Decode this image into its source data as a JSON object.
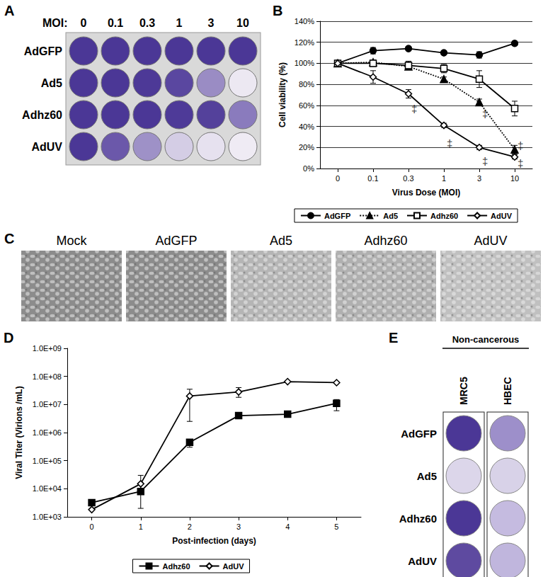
{
  "chart_data": [
    {
      "type": "line",
      "title": "B",
      "categories": [
        "0",
        "0.1",
        "0.3",
        "1",
        "3",
        "10"
      ],
      "x_label": "Virus Dose (MOI)",
      "y_label": "Cell viability (%)",
      "ylim": [
        0,
        140
      ],
      "yticks": [
        {
          "value": 0,
          "label": "0%"
        },
        {
          "value": 20,
          "label": "20%"
        },
        {
          "value": 40,
          "label": "40%"
        },
        {
          "value": 60,
          "label": "60%"
        },
        {
          "value": 80,
          "label": "80%"
        },
        {
          "value": 100,
          "label": "100%"
        },
        {
          "value": 120,
          "label": "120%"
        },
        {
          "value": 140,
          "label": "140%"
        }
      ],
      "grid": true,
      "legend": "bottom",
      "series": [
        {
          "name": "AdGFP",
          "color": "#000000",
          "marker": "circle",
          "line_style": "solid",
          "values": [
            100,
            112,
            114,
            110,
            108,
            119
          ],
          "errors": [
            0,
            3,
            2,
            2,
            3,
            2
          ]
        },
        {
          "name": "Ad5",
          "color": "#000000",
          "marker": "triangle",
          "line_style": "dotted",
          "values": [
            100,
            101,
            97,
            85,
            63,
            18
          ],
          "errors": [
            0,
            2,
            2,
            2,
            3,
            4
          ]
        },
        {
          "name": "Adhz60",
          "color": "#000000",
          "marker": "open-square",
          "line_style": "solid",
          "values": [
            100,
            100,
            98,
            95,
            85,
            57
          ],
          "errors": [
            0,
            3,
            4,
            4,
            8,
            7
          ]
        },
        {
          "name": "AdUV",
          "color": "#000000",
          "marker": "open-diamond",
          "line_style": "solid",
          "values": [
            100,
            87,
            71,
            41,
            20,
            11
          ],
          "errors": [
            0,
            6,
            4,
            2,
            2,
            2
          ]
        }
      ],
      "annotations": [
        {
          "text": "‡",
          "x": "0.3",
          "y": 57
        },
        {
          "text": "‡",
          "x": "1",
          "y": 24
        },
        {
          "text": "‡",
          "x": "3",
          "y": 52
        },
        {
          "text": "‡",
          "x": "3",
          "y": 7
        },
        {
          "text": "‡",
          "x": "10",
          "y": 22
        },
        {
          "text": "‡",
          "x": "10",
          "y": 5
        }
      ]
    },
    {
      "type": "line",
      "title": "D",
      "categories": [
        "0",
        "1",
        "2",
        "3",
        "4",
        "5"
      ],
      "x_label": "Post-infection (days)",
      "y_label": "Viral Titer (Virions /mL)",
      "log": "y",
      "ylim": [
        1000,
        1000000000
      ],
      "yticks": [
        {
          "value": 1000,
          "label": "1.0E+03"
        },
        {
          "value": 10000,
          "label": "1.0E+04"
        },
        {
          "value": 100000,
          "label": "1.0E+05"
        },
        {
          "value": 1000000,
          "label": "1.0E+06"
        },
        {
          "value": 10000000,
          "label": "1.0E+07"
        },
        {
          "value": 100000000,
          "label": "1.0E+08"
        },
        {
          "value": 1000000000,
          "label": "1.0E+09"
        }
      ],
      "grid": false,
      "legend": "bottom",
      "series": [
        {
          "name": "Adhz60",
          "color": "#000000",
          "marker": "square",
          "line_style": "solid",
          "values": [
            3200,
            8000,
            450000,
            4000000,
            4500000,
            11000000
          ],
          "error_low": [
            null,
            2000,
            300000,
            null,
            null,
            6000000
          ],
          "error_high": [
            null,
            15000,
            550000,
            null,
            null,
            15000000
          ]
        },
        {
          "name": "AdUV",
          "color": "#000000",
          "marker": "open-diamond",
          "line_style": "solid",
          "values": [
            1800,
            15000,
            20000000,
            28000000,
            65000000,
            60000000
          ],
          "error_low": [
            null,
            8000,
            2500000,
            18000000,
            null,
            null
          ],
          "error_high": [
            null,
            30000,
            35000000,
            40000000,
            null,
            null
          ]
        }
      ]
    }
  ],
  "panels": {
    "A": {
      "label": "A",
      "column_header": "MOI:",
      "columns": [
        "0",
        "0.1",
        "0.3",
        "1",
        "3",
        "10"
      ],
      "rows": [
        {
          "name": "AdGFP",
          "colors": [
            "#4b3796",
            "#4b3796",
            "#4b3796",
            "#4b3796",
            "#4b3796",
            "#4b3796"
          ]
        },
        {
          "name": "Ad5",
          "colors": [
            "#4b3796",
            "#4b3796",
            "#4d3997",
            "#5a47a0",
            "#9a8cc4",
            "#ece8f2"
          ]
        },
        {
          "name": "Adhz60",
          "colors": [
            "#4b3796",
            "#4b3796",
            "#4b3796",
            "#4e3a98",
            "#54419b",
            "#8a7bbd"
          ]
        },
        {
          "name": "AdUV",
          "colors": [
            "#4b3796",
            "#6b58aa",
            "#9e91c7",
            "#d4cde5",
            "#e6e1ef",
            "#efebf4"
          ]
        }
      ]
    },
    "C": {
      "label": "C",
      "images": [
        {
          "name": "Mock",
          "color": "#8c8c8c"
        },
        {
          "name": "AdGFP",
          "color": "#8c8c8c"
        },
        {
          "name": "Ad5",
          "color": "#b5b5b5"
        },
        {
          "name": "Adhz60",
          "color": "#b0b0b0"
        },
        {
          "name": "AdUV",
          "color": "#c0c0c0"
        }
      ]
    },
    "E": {
      "label": "E",
      "header": "Non-cancerous",
      "columns": [
        "MRC5",
        "HBEC"
      ],
      "rows": [
        {
          "name": "AdGFP",
          "colors": [
            "#4b3796",
            "#9d8fca"
          ]
        },
        {
          "name": "Ad5",
          "colors": [
            "#dcd6ea",
            "#d8d2e8"
          ]
        },
        {
          "name": "Adhz60",
          "colors": [
            "#4b3796",
            "#c5bbe0"
          ]
        },
        {
          "name": "AdUV",
          "colors": [
            "#5e4aa0",
            "#c0b6dd"
          ]
        }
      ]
    }
  }
}
